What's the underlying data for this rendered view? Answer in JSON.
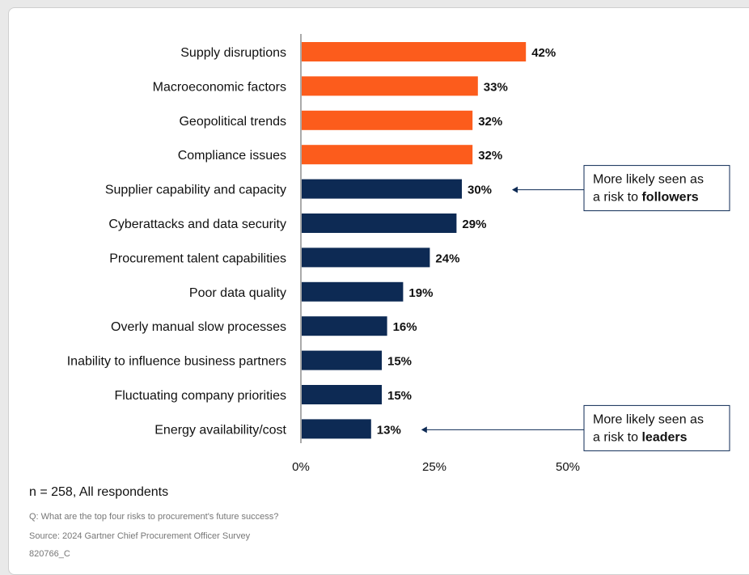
{
  "chart_data": {
    "type": "bar",
    "orientation": "horizontal",
    "categories": [
      "Supply disruptions",
      "Macroeconomic factors",
      "Geopolitical trends",
      "Compliance issues",
      "Supplier capability and capacity",
      "Cyberattacks and data security",
      "Procurement talent capabilities",
      "Poor data quality",
      "Overly manual slow processes",
      "Inability to influence business partners",
      "Fluctuating company priorities",
      "Energy availability/cost"
    ],
    "values": [
      42,
      33,
      32,
      32,
      30,
      29,
      24,
      19,
      16,
      15,
      15,
      13
    ],
    "value_labels": [
      "42%",
      "33%",
      "32%",
      "32%",
      "30%",
      "29%",
      "24%",
      "19%",
      "16%",
      "15%",
      "15%",
      "13%"
    ],
    "xlim": [
      0,
      50
    ],
    "xticks": [
      0,
      25,
      50
    ],
    "xtick_labels": [
      "0%",
      "25%",
      "50%"
    ],
    "grid": false,
    "colors": {
      "highlight": "#fc5c1c",
      "default": "#0d2a54"
    },
    "highlighted_count": 4,
    "annotations": [
      {
        "category_index": 4,
        "line1": "More likely seen as",
        "line2_prefix": "a risk to ",
        "line2_bold": "followers"
      },
      {
        "category_index": 11,
        "line1": "More likely seen as",
        "line2_prefix": "a risk to ",
        "line2_bold": "leaders"
      }
    ]
  },
  "footer": {
    "sample": "n = 258, All respondents",
    "question": "Q: What are the top four risks to procurement's future success?",
    "source": "Source: 2024 Gartner Chief Procurement Officer Survey",
    "id": "820766_C"
  }
}
